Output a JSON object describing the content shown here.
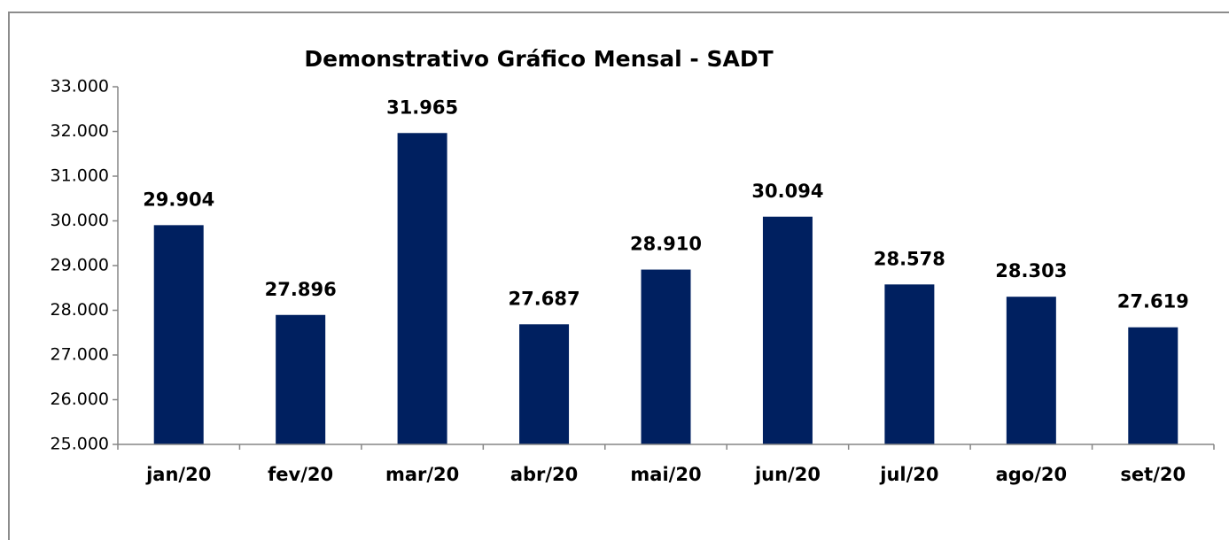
{
  "chart_data": {
    "type": "bar",
    "title": "Demonstrativo Gráfico Mensal - SADT",
    "categories": [
      "jan/20",
      "fev/20",
      "mar/20",
      "abr/20",
      "mai/20",
      "jun/20",
      "jul/20",
      "ago/20",
      "set/20"
    ],
    "values": [
      29904,
      27896,
      31965,
      27687,
      28910,
      30094,
      28578,
      28303,
      27619
    ],
    "value_labels": [
      "29.904",
      "27.896",
      "31.965",
      "27.687",
      "28.910",
      "30.094",
      "28.578",
      "28.303",
      "27.619"
    ],
    "color": "#002060",
    "ylim": [
      25000,
      33000
    ],
    "yticks": [
      {
        "value": 25000,
        "label": "25.000"
      },
      {
        "value": 26000,
        "label": "26.000"
      },
      {
        "value": 27000,
        "label": "27.000"
      },
      {
        "value": 28000,
        "label": "28.000"
      },
      {
        "value": 29000,
        "label": "29.000"
      },
      {
        "value": 30000,
        "label": "30.000"
      },
      {
        "value": 31000,
        "label": "31.000"
      },
      {
        "value": 32000,
        "label": "32.000"
      },
      {
        "value": 33000,
        "label": "33.000"
      }
    ],
    "grid": false
  }
}
